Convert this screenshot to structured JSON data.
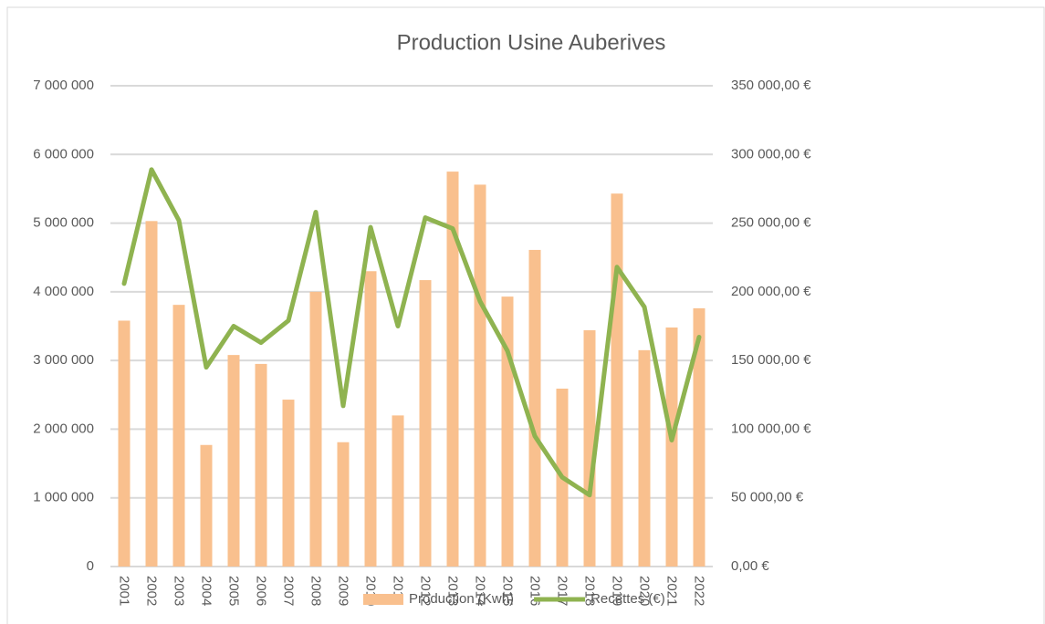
{
  "chart_data": {
    "type": "bar_line",
    "title": "Production Usine Auberives",
    "categories": [
      "2001",
      "2002",
      "2003",
      "2004",
      "2005",
      "2006",
      "2007",
      "2008",
      "2009",
      "2010",
      "2011",
      "2012",
      "2013",
      "2014",
      "2015",
      "2016",
      "2017",
      "2018",
      "2019",
      "2020",
      "2021",
      "2022"
    ],
    "series": [
      {
        "name": "Production (Kwh)",
        "type": "bar",
        "color": "#f9c08e",
        "axis": "y",
        "values": [
          3580000,
          5030000,
          3810000,
          1770000,
          3080000,
          2950000,
          2430000,
          4000000,
          1810000,
          4300000,
          2200000,
          4170000,
          5750000,
          5560000,
          3930000,
          4610000,
          2590000,
          3440000,
          5430000,
          3150000,
          3480000,
          3760000
        ]
      },
      {
        "name": "Recettes (€)",
        "type": "line",
        "color": "#8fb350",
        "axis": "y2",
        "values": [
          206000,
          289000,
          252000,
          145000,
          175000,
          163000,
          179000,
          258000,
          117000,
          247000,
          175000,
          254000,
          246000,
          193000,
          157000,
          95000,
          65000,
          52000,
          218000,
          189000,
          92000,
          167000
        ]
      }
    ],
    "ylim": [
      0,
      7000000
    ],
    "yticks": [
      0,
      {
        "value": 1000000,
        "label": "1 000 000"
      },
      {
        "value": 2000000,
        "label": "2 000 000"
      },
      {
        "value": 3000000,
        "label": "3 000 000"
      },
      {
        "value": 4000000,
        "label": "4 000 000"
      },
      {
        "value": 5000000,
        "label": "5 000 000"
      },
      {
        "value": 6000000,
        "label": "6 000 000"
      },
      {
        "value": 7000000,
        "label": "7 000 000"
      }
    ],
    "y2lim": [
      0,
      350000
    ],
    "y2ticks": [
      {
        "value": 0,
        "label": "0,00 €"
      },
      {
        "value": 50000,
        "label": "50 000,00 €"
      },
      {
        "value": 100000,
        "label": "100 000,00 €"
      },
      {
        "value": 150000,
        "label": "150 000,00 €"
      },
      {
        "value": 200000,
        "label": "200 000,00 €"
      },
      {
        "value": 250000,
        "label": "250 000,00 €"
      },
      {
        "value": 300000,
        "label": "300 000,00 €"
      },
      {
        "value": 350000,
        "label": "350 000,00 €"
      }
    ],
    "grid": true,
    "legend": "bottom"
  }
}
